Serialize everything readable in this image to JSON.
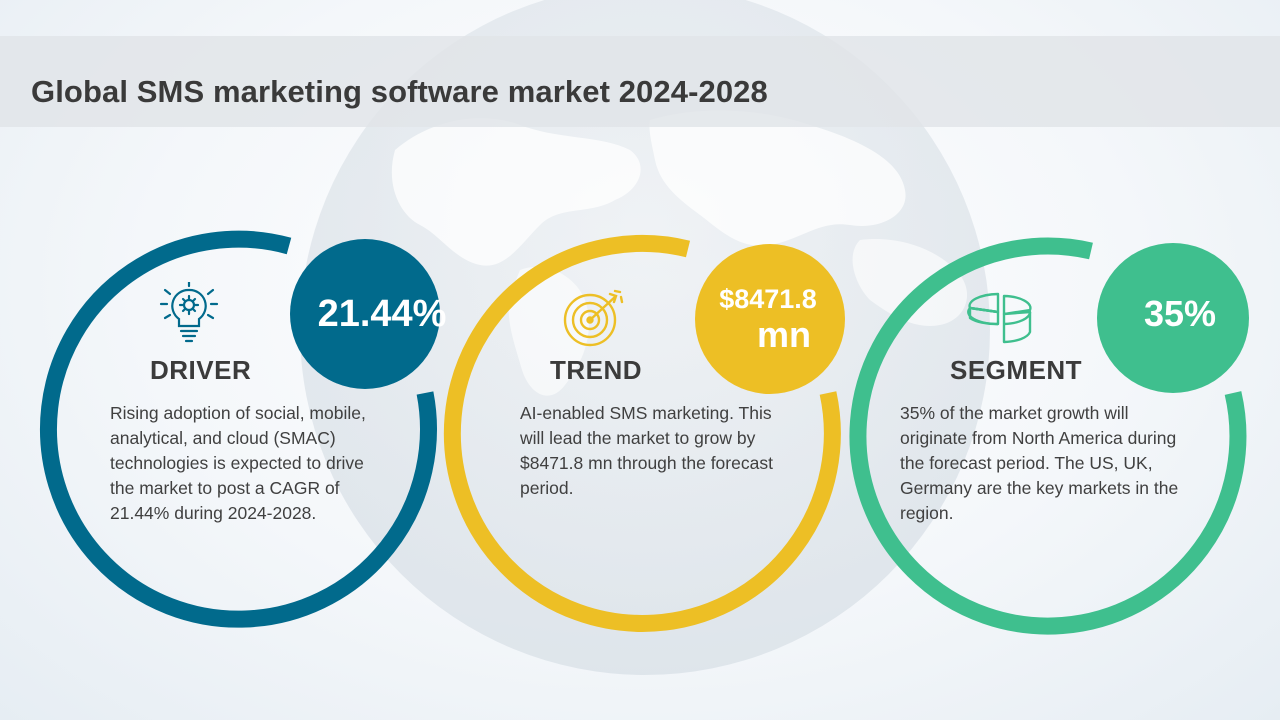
{
  "title": "Global SMS marketing software market 2024-2028",
  "colors": {
    "driver": "#016a8c",
    "trend": "#edbf25",
    "segment": "#3fbf8e",
    "title_band": "#e1e4e8"
  },
  "cards": {
    "driver": {
      "icon": "lightbulb-gear-icon",
      "stat": "21.44%",
      "heading": "DRIVER",
      "text": "Rising adoption of social, mobile, analytical, and cloud (SMAC) technologies is expected to drive the market to post a CAGR of 21.44% during 2024-2028."
    },
    "trend": {
      "icon": "target-arrow-icon",
      "stat_line1": "$8471.8",
      "stat_line2": "mn",
      "heading": "TREND",
      "text": "AI-enabled SMS marketing. This will lead the market to grow by $8471.8 mn through the forecast period."
    },
    "segment": {
      "icon": "pie-chart-icon",
      "stat": "35%",
      "heading": "SEGMENT",
      "text": "35% of the market growth will originate from North America during the forecast period. The US, UK, Germany are the key markets in the region."
    }
  }
}
